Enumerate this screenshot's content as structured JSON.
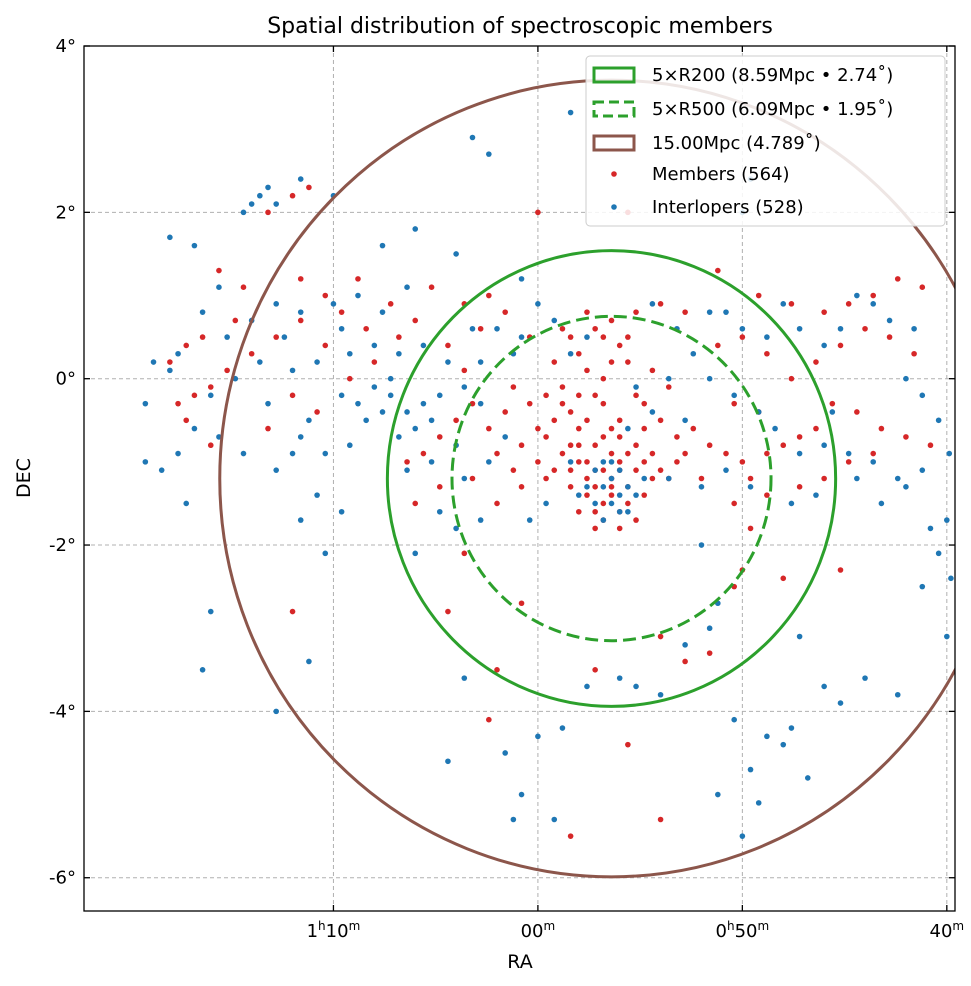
{
  "chart_data": {
    "type": "scatter",
    "title": "Spatial distribution of spectroscopic members",
    "xlabel": "RA",
    "ylabel": "DEC",
    "xlim_deg": [
      20.55,
      9.9
    ],
    "ylim_deg": [
      -6.4,
      4.0
    ],
    "x_axis_inverted": true,
    "grid": true,
    "legend_position": "top-right",
    "x_ticks": [
      {
        "ra_deg": 17.5,
        "h": "1",
        "m": "10",
        "show_h": true
      },
      {
        "ra_deg": 15.0,
        "m": "00",
        "show_h": false
      },
      {
        "ra_deg": 12.5,
        "h": "0",
        "m": "50",
        "show_h": true
      },
      {
        "ra_deg": 10.0,
        "m": "40",
        "show_h": false
      }
    ],
    "y_ticks": [
      {
        "value": 4,
        "label": "4°"
      },
      {
        "value": 2,
        "label": "2°"
      },
      {
        "value": 0,
        "label": "0°"
      },
      {
        "value": -2,
        "label": "-2°"
      },
      {
        "value": -4,
        "label": "-4°"
      },
      {
        "value": -6,
        "label": "-6°"
      }
    ],
    "center": {
      "ra_deg": 14.1,
      "dec_deg": -1.2
    },
    "circles": [
      {
        "label": "5×R200 (8.59Mpc • 2.74˚)",
        "radius_deg": 2.74,
        "color": "#2ca02c",
        "dashed": false
      },
      {
        "label": "5×R500 (6.09Mpc • 1.95˚)",
        "radius_deg": 1.95,
        "color": "#2ca02c",
        "dashed": true
      },
      {
        "label": "15.00Mpc (4.789˚)",
        "radius_deg": 4.789,
        "color": "#8c564b",
        "dashed": false
      }
    ],
    "series": [
      {
        "name": "Members (564)",
        "color": "#d62728"
      },
      {
        "name": "Interlopers (528)",
        "color": "#1f77b4"
      }
    ],
    "members_points": [
      [
        14.1,
        -1.2
      ],
      [
        14.1,
        -1.4
      ],
      [
        14.3,
        -1.3
      ],
      [
        14.0,
        -1.1
      ],
      [
        14.2,
        -1.5
      ],
      [
        14.4,
        -1.2
      ],
      [
        14.1,
        -0.9
      ],
      [
        14.3,
        -0.8
      ],
      [
        14.5,
        -0.6
      ],
      [
        14.6,
        -0.4
      ],
      [
        14.7,
        -0.3
      ],
      [
        14.8,
        -0.5
      ],
      [
        14.6,
        -0.8
      ],
      [
        14.4,
        -0.5
      ],
      [
        14.2,
        -0.7
      ],
      [
        14.0,
        -0.5
      ],
      [
        13.8,
        -0.8
      ],
      [
        13.7,
        -1.0
      ],
      [
        13.9,
        -1.3
      ],
      [
        13.6,
        -1.2
      ],
      [
        14.5,
        -1.0
      ],
      [
        14.7,
        -0.9
      ],
      [
        14.9,
        -0.7
      ],
      [
        15.0,
        -0.6
      ],
      [
        14.8,
        -1.1
      ],
      [
        14.3,
        -0.2
      ],
      [
        14.2,
        0.0
      ],
      [
        14.1,
        0.2
      ],
      [
        14.0,
        0.4
      ],
      [
        14.2,
        0.5
      ],
      [
        14.1,
        0.7
      ],
      [
        13.9,
        0.2
      ],
      [
        14.4,
        0.1
      ],
      [
        13.8,
        -0.2
      ],
      [
        13.5,
        -1.1
      ],
      [
        13.4,
        -1.2
      ],
      [
        13.3,
        -1.0
      ],
      [
        13.6,
        -0.9
      ],
      [
        14.0,
        -1.6
      ],
      [
        14.2,
        -1.7
      ],
      [
        13.9,
        -1.5
      ],
      [
        14.4,
        -1.4
      ],
      [
        14.6,
        -1.3
      ],
      [
        14.3,
        -1.8
      ],
      [
        14.0,
        -1.8
      ],
      [
        14.5,
        -0.2
      ],
      [
        14.7,
        -0.1
      ],
      [
        15.1,
        -0.3
      ],
      [
        15.2,
        -0.8
      ],
      [
        15.0,
        -1.0
      ],
      [
        14.9,
        -1.2
      ],
      [
        13.7,
        -0.6
      ],
      [
        13.5,
        -0.5
      ],
      [
        13.3,
        -0.7
      ],
      [
        13.2,
        -0.9
      ],
      [
        14.8,
        0.2
      ],
      [
        14.6,
        0.5
      ],
      [
        14.4,
        0.8
      ],
      [
        15.4,
        -0.4
      ],
      [
        15.5,
        -0.9
      ],
      [
        15.3,
        -1.1
      ],
      [
        13.1,
        -0.6
      ],
      [
        12.9,
        -0.8
      ],
      [
        12.7,
        -0.9
      ],
      [
        12.5,
        -1.0
      ],
      [
        12.4,
        -1.2
      ],
      [
        12.2,
        -0.9
      ],
      [
        12.0,
        -0.8
      ],
      [
        11.8,
        -0.7
      ],
      [
        11.6,
        -0.6
      ],
      [
        12.3,
        -0.4
      ],
      [
        12.6,
        -0.3
      ],
      [
        15.6,
        -0.6
      ],
      [
        15.8,
        -0.3
      ],
      [
        16.0,
        -0.5
      ],
      [
        16.2,
        -0.7
      ],
      [
        16.4,
        -0.9
      ],
      [
        16.6,
        -1.0
      ],
      [
        15.9,
        0.1
      ],
      [
        16.1,
        0.4
      ],
      [
        15.7,
        0.6
      ],
      [
        15.4,
        0.8
      ],
      [
        15.1,
        0.5
      ],
      [
        16.5,
        0.7
      ],
      [
        16.8,
        0.9
      ],
      [
        17.1,
        0.6
      ],
      [
        17.4,
        0.8
      ],
      [
        17.6,
        0.4
      ],
      [
        17.9,
        0.7
      ],
      [
        18.2,
        0.5
      ],
      [
        18.5,
        0.3
      ],
      [
        18.8,
        0.1
      ],
      [
        19.0,
        -0.1
      ],
      [
        19.2,
        -0.2
      ],
      [
        19.4,
        -0.3
      ],
      [
        19.5,
        0.2
      ],
      [
        19.3,
        0.4
      ],
      [
        17.0,
        0.2
      ],
      [
        17.3,
        0.0
      ],
      [
        17.7,
        -0.4
      ],
      [
        18.0,
        -0.2
      ],
      [
        18.3,
        -0.6
      ],
      [
        18.6,
        1.1
      ],
      [
        18.9,
        1.3
      ],
      [
        17.9,
        1.2
      ],
      [
        17.6,
        1.0
      ],
      [
        18.3,
        2.0
      ],
      [
        18.0,
        2.2
      ],
      [
        17.8,
        2.3
      ],
      [
        15.0,
        2.0
      ],
      [
        13.9,
        2.0
      ],
      [
        12.8,
        1.3
      ],
      [
        12.3,
        1.0
      ],
      [
        11.9,
        0.9
      ],
      [
        11.5,
        0.8
      ],
      [
        11.2,
        0.9
      ],
      [
        10.9,
        1.0
      ],
      [
        10.6,
        1.2
      ],
      [
        10.3,
        1.1
      ],
      [
        11.0,
        0.6
      ],
      [
        11.3,
        0.4
      ],
      [
        11.6,
        0.2
      ],
      [
        11.9,
        0.0
      ],
      [
        12.2,
        0.3
      ],
      [
        12.5,
        0.5
      ],
      [
        12.8,
        0.4
      ],
      [
        11.4,
        -0.3
      ],
      [
        11.1,
        -0.4
      ],
      [
        10.8,
        -0.6
      ],
      [
        10.5,
        -0.7
      ],
      [
        10.2,
        -0.8
      ],
      [
        10.7,
        0.5
      ],
      [
        10.4,
        0.3
      ],
      [
        13.0,
        -1.2
      ],
      [
        12.6,
        -1.5
      ],
      [
        12.2,
        -1.4
      ],
      [
        11.8,
        -1.3
      ],
      [
        11.5,
        -1.2
      ],
      [
        11.2,
        -1.0
      ],
      [
        10.9,
        -0.9
      ],
      [
        15.2,
        -1.3
      ],
      [
        15.5,
        -1.5
      ],
      [
        15.8,
        -1.2
      ],
      [
        16.2,
        -1.3
      ],
      [
        16.5,
        -1.5
      ],
      [
        13.5,
        -3.1
      ],
      [
        13.2,
        -3.4
      ],
      [
        12.9,
        -3.3
      ],
      [
        12.6,
        -2.5
      ],
      [
        14.3,
        -3.5
      ],
      [
        13.9,
        -4.4
      ],
      [
        15.2,
        -2.7
      ],
      [
        15.9,
        -2.1
      ],
      [
        16.1,
        -2.8
      ],
      [
        15.5,
        -3.5
      ],
      [
        15.6,
        -4.1
      ],
      [
        13.5,
        -5.3
      ],
      [
        14.6,
        -5.5
      ],
      [
        18.0,
        -2.8
      ],
      [
        12.0,
        -2.4
      ],
      [
        11.3,
        -2.3
      ],
      [
        12.4,
        -1.8
      ],
      [
        12.5,
        -2.3
      ],
      [
        13.7,
        -0.3
      ],
      [
        13.9,
        0.5
      ],
      [
        13.6,
        0.1
      ],
      [
        13.4,
        -0.1
      ],
      [
        14.9,
        -0.2
      ],
      [
        15.3,
        -0.1
      ],
      [
        14.5,
        0.3
      ],
      [
        14.3,
        0.6
      ],
      [
        14.7,
        0.6
      ],
      [
        13.8,
        0.8
      ],
      [
        13.5,
        0.9
      ],
      [
        13.2,
        0.8
      ],
      [
        15.6,
        1.0
      ],
      [
        15.9,
        0.9
      ],
      [
        16.3,
        1.1
      ],
      [
        16.7,
        0.5
      ],
      [
        17.2,
        1.2
      ],
      [
        18.7,
        0.7
      ],
      [
        19.1,
        0.5
      ],
      [
        19.3,
        -0.5
      ],
      [
        19.0,
        -0.8
      ],
      [
        14.0,
        -1.0
      ],
      [
        14.2,
        -1.1
      ],
      [
        14.4,
        -1.0
      ],
      [
        13.8,
        -1.1
      ],
      [
        14.1,
        -1.3
      ],
      [
        14.3,
        -1.1
      ],
      [
        13.9,
        -0.9
      ],
      [
        14.6,
        -1.1
      ],
      [
        14.0,
        -0.7
      ],
      [
        14.2,
        -0.3
      ],
      [
        14.5,
        -0.8
      ],
      [
        13.7,
        -1.4
      ],
      [
        14.5,
        -1.6
      ],
      [
        13.8,
        -1.7
      ],
      [
        14.1,
        -0.6
      ],
      [
        14.3,
        -1.6
      ]
    ],
    "interlopers_points": [
      [
        14.1,
        -1.2
      ],
      [
        14.2,
        -1.3
      ],
      [
        14.0,
        -1.4
      ],
      [
        14.3,
        -1.1
      ],
      [
        14.1,
        -1.5
      ],
      [
        16.4,
        -0.3
      ],
      [
        16.6,
        -0.4
      ],
      [
        16.8,
        -0.2
      ],
      [
        16.5,
        -0.6
      ],
      [
        16.3,
        -0.5
      ],
      [
        16.7,
        -0.7
      ],
      [
        16.9,
        -0.4
      ],
      [
        17.0,
        -0.1
      ],
      [
        16.2,
        -0.2
      ],
      [
        17.2,
        -0.3
      ],
      [
        16.0,
        -0.8
      ],
      [
        17.3,
        -0.8
      ],
      [
        17.6,
        -0.9
      ],
      [
        17.9,
        -0.7
      ],
      [
        18.2,
        -1.1
      ],
      [
        17.7,
        -1.4
      ],
      [
        17.4,
        -1.6
      ],
      [
        18.6,
        -0.9
      ],
      [
        18.9,
        -0.7
      ],
      [
        19.2,
        -0.6
      ],
      [
        19.4,
        -0.9
      ],
      [
        19.6,
        -1.1
      ],
      [
        19.3,
        -1.5
      ],
      [
        19.8,
        -1.0
      ],
      [
        19.0,
        -0.2
      ],
      [
        19.5,
        0.1
      ],
      [
        19.7,
        0.2
      ],
      [
        18.8,
        0.5
      ],
      [
        18.5,
        0.7
      ],
      [
        18.2,
        0.9
      ],
      [
        17.9,
        0.8
      ],
      [
        17.5,
        0.9
      ],
      [
        17.2,
        1.0
      ],
      [
        16.9,
        0.8
      ],
      [
        16.6,
        1.1
      ],
      [
        17.0,
        0.4
      ],
      [
        17.4,
        0.6
      ],
      [
        17.7,
        0.2
      ],
      [
        18.0,
        0.1
      ],
      [
        18.4,
        0.2
      ],
      [
        18.7,
        0.0
      ],
      [
        18.5,
        2.1
      ],
      [
        18.4,
        2.2
      ],
      [
        18.3,
        2.3
      ],
      [
        18.6,
        2.0
      ],
      [
        18.2,
        2.1
      ],
      [
        17.9,
        2.4
      ],
      [
        17.5,
        2.2
      ],
      [
        16.9,
        1.6
      ],
      [
        16.5,
        1.8
      ],
      [
        15.8,
        2.9
      ],
      [
        15.6,
        2.7
      ],
      [
        14.6,
        3.2
      ],
      [
        12.4,
        2.4
      ],
      [
        12.5,
        2.0
      ],
      [
        19.5,
        1.7
      ],
      [
        19.2,
        1.6
      ],
      [
        16.0,
        1.5
      ],
      [
        15.2,
        1.2
      ],
      [
        15.0,
        0.9
      ],
      [
        14.8,
        0.7
      ],
      [
        15.5,
        0.6
      ],
      [
        15.3,
        0.3
      ],
      [
        15.7,
        0.2
      ],
      [
        15.9,
        -0.1
      ],
      [
        15.4,
        -0.7
      ],
      [
        15.6,
        -1.0
      ],
      [
        15.9,
        -1.2
      ],
      [
        16.2,
        -1.6
      ],
      [
        16.5,
        -2.1
      ],
      [
        15.9,
        -3.6
      ],
      [
        16.1,
        -4.6
      ],
      [
        15.4,
        -4.5
      ],
      [
        15.3,
        -5.3
      ],
      [
        15.2,
        -5.0
      ],
      [
        15.0,
        -4.3
      ],
      [
        14.7,
        -4.2
      ],
      [
        14.8,
        -5.3
      ],
      [
        17.8,
        -3.4
      ],
      [
        19.1,
        -3.5
      ],
      [
        18.2,
        -4.0
      ],
      [
        19.0,
        -2.8
      ],
      [
        17.9,
        -1.7
      ],
      [
        16.0,
        -1.8
      ],
      [
        15.7,
        -1.7
      ],
      [
        14.4,
        -3.7
      ],
      [
        14.0,
        -3.6
      ],
      [
        13.8,
        -3.7
      ],
      [
        13.5,
        -3.8
      ],
      [
        13.2,
        -3.2
      ],
      [
        12.9,
        -3.0
      ],
      [
        12.8,
        -2.7
      ],
      [
        11.8,
        -3.1
      ],
      [
        11.5,
        -3.7
      ],
      [
        11.3,
        -3.9
      ],
      [
        11.0,
        -3.6
      ],
      [
        10.6,
        -3.8
      ],
      [
        12.6,
        -4.1
      ],
      [
        12.4,
        -4.7
      ],
      [
        12.2,
        -4.3
      ],
      [
        12.0,
        -4.4
      ],
      [
        11.9,
        -4.2
      ],
      [
        11.7,
        -4.8
      ],
      [
        12.3,
        -5.1
      ],
      [
        12.5,
        -5.5
      ],
      [
        12.8,
        -5.0
      ],
      [
        10.0,
        -3.1
      ],
      [
        10.3,
        -2.5
      ],
      [
        10.1,
        -2.1
      ],
      [
        9.95,
        -2.4
      ],
      [
        10.2,
        -1.8
      ],
      [
        10.0,
        -1.7
      ],
      [
        9.97,
        -0.9
      ],
      [
        10.1,
        -0.5
      ],
      [
        10.3,
        -0.2
      ],
      [
        10.5,
        0.0
      ],
      [
        10.4,
        0.6
      ],
      [
        10.7,
        0.7
      ],
      [
        10.9,
        0.9
      ],
      [
        11.1,
        1.0
      ],
      [
        11.3,
        0.6
      ],
      [
        11.5,
        0.4
      ],
      [
        11.8,
        0.6
      ],
      [
        12.0,
        0.9
      ],
      [
        12.2,
        0.5
      ],
      [
        12.5,
        0.6
      ],
      [
        12.7,
        0.8
      ],
      [
        12.9,
        0.8
      ],
      [
        13.3,
        0.6
      ],
      [
        13.6,
        0.9
      ],
      [
        12.9,
        0.0
      ],
      [
        12.6,
        -0.2
      ],
      [
        12.3,
        -0.4
      ],
      [
        12.1,
        -0.6
      ],
      [
        11.8,
        -0.9
      ],
      [
        11.5,
        -0.8
      ],
      [
        11.2,
        -0.9
      ],
      [
        10.9,
        -1.0
      ],
      [
        10.6,
        -1.2
      ],
      [
        10.3,
        -1.1
      ],
      [
        11.4,
        -0.4
      ],
      [
        12.4,
        -1.3
      ],
      [
        12.7,
        -1.1
      ],
      [
        13.0,
        -1.3
      ],
      [
        13.4,
        -1.2
      ],
      [
        13.8,
        -0.1
      ],
      [
        13.6,
        -0.4
      ],
      [
        14.9,
        -1.5
      ],
      [
        15.1,
        -1.7
      ],
      [
        14.6,
        -1.0
      ],
      [
        14.5,
        -1.4
      ],
      [
        13.7,
        -1.2
      ],
      [
        13.9,
        -0.6
      ],
      [
        14.6,
        0.3
      ],
      [
        14.4,
        0.5
      ],
      [
        15.2,
        0.5
      ],
      [
        13.1,
        0.3
      ],
      [
        13.4,
        0.0
      ],
      [
        13.2,
        -0.5
      ],
      [
        16.4,
        0.4
      ],
      [
        16.1,
        0.2
      ],
      [
        15.7,
        -0.3
      ],
      [
        15.8,
        0.6
      ],
      [
        16.7,
        0.3
      ],
      [
        17.1,
        -0.5
      ],
      [
        17.4,
        -0.2
      ],
      [
        17.8,
        -0.5
      ],
      [
        18.3,
        -0.3
      ],
      [
        18.0,
        -0.9
      ],
      [
        17.3,
        0.3
      ],
      [
        18.1,
        0.5
      ],
      [
        19.8,
        -0.3
      ],
      [
        19.4,
        0.3
      ],
      [
        18.9,
        1.1
      ],
      [
        19.1,
        0.8
      ],
      [
        16.8,
        0.0
      ],
      [
        16.3,
        -1.0
      ],
      [
        16.6,
        -1.1
      ],
      [
        13.0,
        -2.0
      ],
      [
        11.9,
        -1.5
      ],
      [
        11.6,
        -1.4
      ],
      [
        11.1,
        -1.2
      ],
      [
        10.8,
        -1.5
      ],
      [
        10.5,
        -1.3
      ],
      [
        17.6,
        -2.1
      ],
      [
        13.9,
        -1.6
      ],
      [
        14.2,
        -1.7
      ],
      [
        14.0,
        -1.1
      ],
      [
        14.2,
        -1.0
      ],
      [
        14.3,
        -1.5
      ],
      [
        13.9,
        -1.3
      ],
      [
        14.4,
        -1.3
      ],
      [
        13.8,
        -1.4
      ],
      [
        14.1,
        -1.0
      ],
      [
        14.0,
        -1.6
      ]
    ]
  }
}
